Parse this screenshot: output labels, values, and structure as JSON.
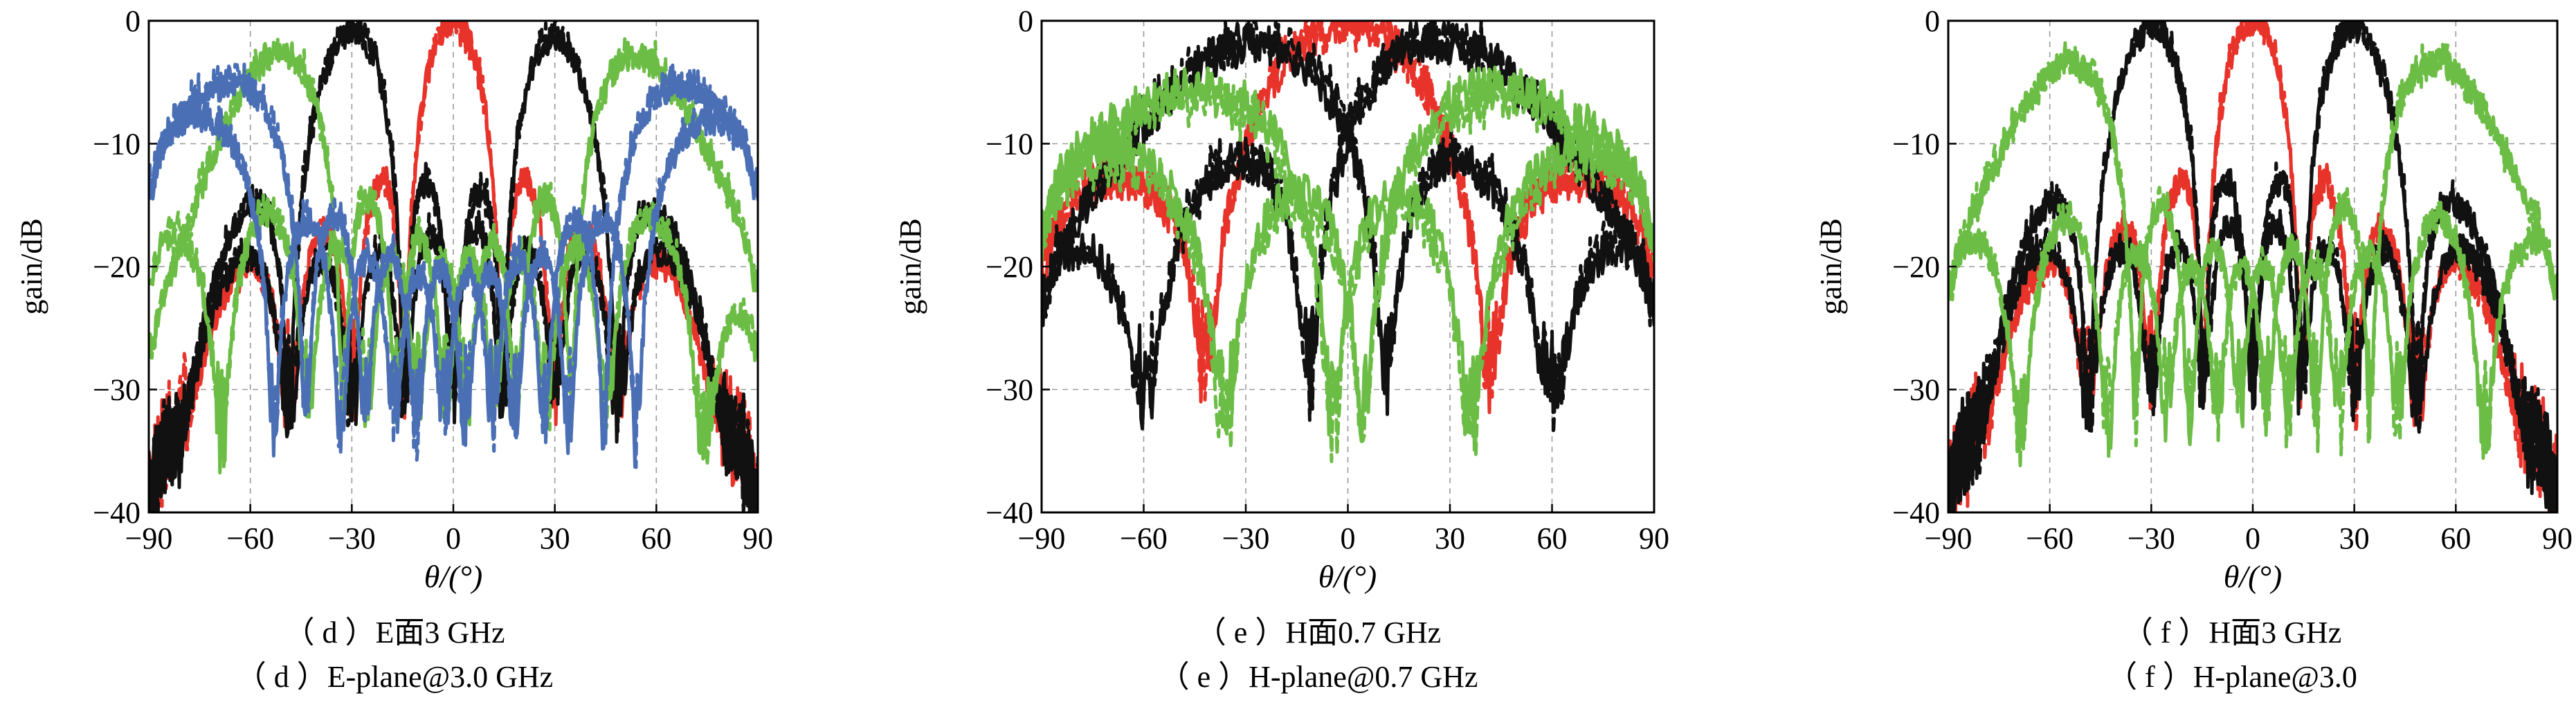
{
  "figure": {
    "panels": [
      {
        "id": "d",
        "caption_cn": "（ d ）E面3 GHz",
        "caption_en": "（ d ）E-plane@3.0 GHz",
        "ylabel": "gain/dB",
        "xlabel": "θ/(°)",
        "chart_data": {
          "type": "line",
          "xlim": [
            -90,
            90
          ],
          "ylim": [
            -40,
            0
          ],
          "xticks": [
            -90,
            -60,
            -30,
            0,
            30,
            60,
            90
          ],
          "yticks": [
            0,
            -10,
            -20,
            -30,
            -40
          ],
          "grid": true,
          "series": [
            {
              "color": "#e8332b",
              "style": "solid",
              "beam_angle": 0,
              "peak_db": 0
            },
            {
              "color": "#e8332b",
              "style": "dashed",
              "beam_angle": 0,
              "peak_db": 0
            },
            {
              "color": "#111111",
              "style": "solid",
              "beam_angle": -30,
              "peak_db": -0.5
            },
            {
              "color": "#111111",
              "style": "dashed",
              "beam_angle": -30,
              "peak_db": -0.2
            },
            {
              "color": "#111111",
              "style": "solid",
              "beam_angle": 30,
              "peak_db": -1
            },
            {
              "color": "#111111",
              "style": "dashed",
              "beam_angle": 30,
              "peak_db": -0.8
            },
            {
              "color": "#6cbd45",
              "style": "solid",
              "beam_angle": -52,
              "peak_db": -1.5
            },
            {
              "color": "#6cbd45",
              "style": "dashed",
              "beam_angle": -52,
              "peak_db": -1.2
            },
            {
              "color": "#6cbd45",
              "style": "solid",
              "beam_angle": 55,
              "peak_db": -1.5
            },
            {
              "color": "#6cbd45",
              "style": "dashed",
              "beam_angle": 55,
              "peak_db": -1.2
            },
            {
              "color": "#4a6fb5",
              "style": "solid",
              "beam_angle": -70,
              "peak_db": -2.6
            },
            {
              "color": "#4a6fb5",
              "style": "dashed",
              "beam_angle": -70,
              "peak_db": -2.3
            },
            {
              "color": "#4a6fb5",
              "style": "solid",
              "beam_angle": 72,
              "peak_db": -2.8
            },
            {
              "color": "#4a6fb5",
              "style": "dashed",
              "beam_angle": 72,
              "peak_db": -2.5
            }
          ]
        }
      },
      {
        "id": "e",
        "caption_cn": "（ e ）H面0.7 GHz",
        "caption_en": "（ e ）H-plane@0.7 GHz",
        "ylabel": "gain/dB",
        "xlabel": "θ/(°)",
        "chart_data": {
          "type": "line",
          "xlim": [
            -90,
            90
          ],
          "ylim": [
            -40,
            0
          ],
          "xticks": [
            -90,
            -60,
            -30,
            0,
            30,
            60,
            90
          ],
          "yticks": [
            0,
            -10,
            -20,
            -30,
            -40
          ],
          "grid": true,
          "series": [
            {
              "color": "#e8332b",
              "style": "solid",
              "beam_angle": 0,
              "peak_db": -0.3
            },
            {
              "color": "#e8332b",
              "style": "dashed",
              "beam_angle": 0,
              "peak_db": 0
            },
            {
              "color": "#111111",
              "style": "solid",
              "beam_angle": -28,
              "peak_db": -1.5
            },
            {
              "color": "#111111",
              "style": "dashed",
              "beam_angle": -28,
              "peak_db": -1.0
            },
            {
              "color": "#111111",
              "style": "solid",
              "beam_angle": 28,
              "peak_db": -1.5
            },
            {
              "color": "#111111",
              "style": "dashed",
              "beam_angle": 28,
              "peak_db": -1.0
            },
            {
              "color": "#6cbd45",
              "style": "solid",
              "beam_angle": -48,
              "peak_db": -4.5
            },
            {
              "color": "#6cbd45",
              "style": "dashed",
              "beam_angle": -48,
              "peak_db": -5.5
            },
            {
              "color": "#6cbd45",
              "style": "solid",
              "beam_angle": 48,
              "peak_db": -4.5
            },
            {
              "color": "#6cbd45",
              "style": "dashed",
              "beam_angle": 48,
              "peak_db": -5.5
            }
          ]
        }
      },
      {
        "id": "f",
        "caption_cn": "（ f ）H面3 GHz",
        "caption_en": "（ f ）H-plane@3.0",
        "ylabel": "gain/dB",
        "xlabel": "θ/(°)",
        "chart_data": {
          "type": "line",
          "xlim": [
            -90,
            90
          ],
          "ylim": [
            -40,
            0
          ],
          "xticks": [
            -90,
            -60,
            -30,
            0,
            30,
            60,
            90
          ],
          "yticks": [
            0,
            -10,
            -20,
            -30,
            -40
          ],
          "grid": true,
          "series": [
            {
              "color": "#e8332b",
              "style": "solid",
              "beam_angle": 0,
              "peak_db": 0
            },
            {
              "color": "#e8332b",
              "style": "dashed",
              "beam_angle": 0,
              "peak_db": 0
            },
            {
              "color": "#111111",
              "style": "solid",
              "beam_angle": -30,
              "peak_db": -0.3
            },
            {
              "color": "#111111",
              "style": "dashed",
              "beam_angle": -30,
              "peak_db": 0
            },
            {
              "color": "#111111",
              "style": "solid",
              "beam_angle": 30,
              "peak_db": -0.3
            },
            {
              "color": "#111111",
              "style": "dashed",
              "beam_angle": 30,
              "peak_db": 0
            },
            {
              "color": "#6cbd45",
              "style": "solid",
              "beam_angle": -55,
              "peak_db": -2.0
            },
            {
              "color": "#6cbd45",
              "style": "dashed",
              "beam_angle": -55,
              "peak_db": -1.8
            },
            {
              "color": "#6cbd45",
              "style": "solid",
              "beam_angle": 55,
              "peak_db": -2.0
            },
            {
              "color": "#6cbd45",
              "style": "dashed",
              "beam_angle": 55,
              "peak_db": -1.8
            }
          ]
        }
      }
    ]
  }
}
